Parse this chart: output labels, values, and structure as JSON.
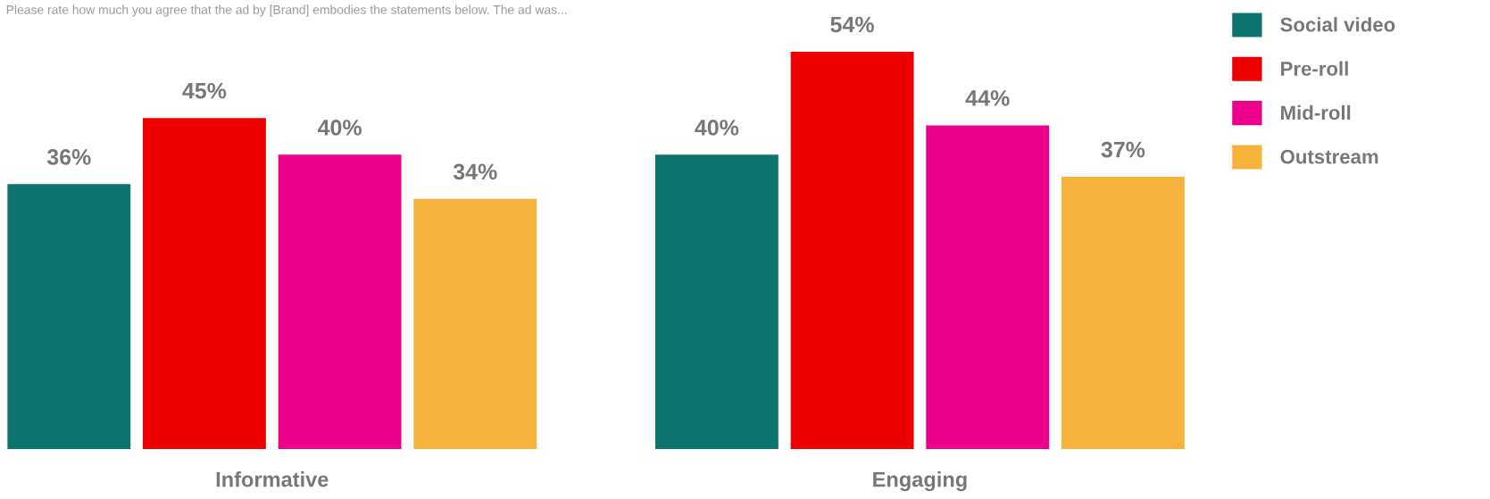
{
  "chart_data": {
    "type": "bar",
    "annotations": [
      "Please rate how much you agree that the ad by [Brand] embodies the statements below. The ad was..."
    ],
    "categories": [
      "Informative",
      "Engaging"
    ],
    "series": [
      {
        "name": "Social video",
        "color": "#0e7470",
        "values": [
          36,
          40
        ],
        "value_labels": [
          "36%",
          "40%"
        ]
      },
      {
        "name": "Pre-roll",
        "color": "#ee0000",
        "values": [
          45,
          54
        ],
        "value_labels": [
          "45%",
          "54%"
        ]
      },
      {
        "name": "Mid-roll",
        "color": "#ec008c",
        "values": [
          40,
          44
        ],
        "value_labels": [
          "40%",
          "44%"
        ]
      },
      {
        "name": "Outstream",
        "color": "#f5b33c",
        "values": [
          34,
          37
        ],
        "value_labels": [
          "34%",
          "37%"
        ]
      }
    ],
    "legend": "right",
    "grid": false
  }
}
